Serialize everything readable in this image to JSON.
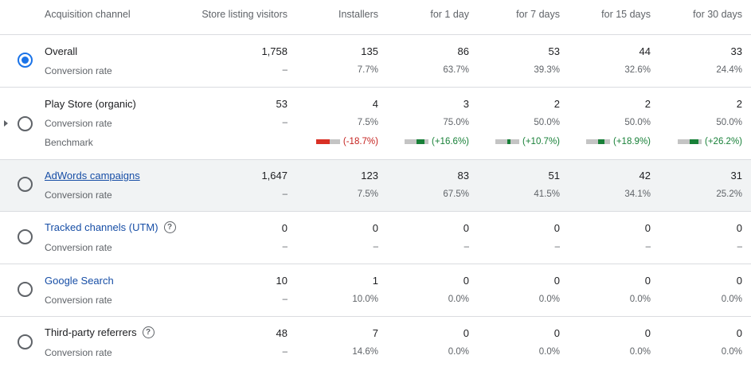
{
  "header": {
    "channel": "Acquisition channel",
    "visitors": "Store listing visitors",
    "installers": "Installers",
    "d1": "for 1 day",
    "d7": "for 7 days",
    "d15": "for 15 days",
    "d30": "for 30 days"
  },
  "rows": [
    {
      "name": "Overall",
      "sub": "Conversion rate",
      "selected": true,
      "values": [
        "1,758",
        "135",
        "86",
        "53",
        "44",
        "33"
      ],
      "rates": [
        "–",
        "7.7%",
        "63.7%",
        "39.3%",
        "32.6%",
        "24.4%"
      ]
    },
    {
      "name": "Play Store (organic)",
      "sub": "Conversion rate",
      "bench_label": "Benchmark",
      "values": [
        "53",
        "4",
        "3",
        "2",
        "2",
        "2"
      ],
      "rates": [
        "–",
        "7.5%",
        "75.0%",
        "50.0%",
        "50.0%",
        "50.0%"
      ],
      "benchmarks": [
        {
          "text": "(-18.7%)",
          "color": "#d93025"
        },
        {
          "text": "(+16.6%)",
          "color": "#188038"
        },
        {
          "text": "(+10.7%)",
          "color": "#188038"
        },
        {
          "text": "(+18.9%)",
          "color": "#188038"
        },
        {
          "text": "(+26.2%)",
          "color": "#188038"
        }
      ]
    },
    {
      "name": "AdWords campaigns",
      "sub": "Conversion rate",
      "values": [
        "1,647",
        "123",
        "83",
        "51",
        "42",
        "31"
      ],
      "rates": [
        "–",
        "7.5%",
        "67.5%",
        "41.5%",
        "34.1%",
        "25.2%"
      ]
    },
    {
      "name": "Tracked channels (UTM)",
      "sub": "Conversion rate",
      "help_icon": "?",
      "values": [
        "0",
        "0",
        "0",
        "0",
        "0",
        "0"
      ],
      "rates": [
        "–",
        "–",
        "–",
        "–",
        "–",
        "–"
      ]
    },
    {
      "name": "Google Search",
      "sub": "Conversion rate",
      "values": [
        "10",
        "1",
        "0",
        "0",
        "0",
        "0"
      ],
      "rates": [
        "–",
        "10.0%",
        "0.0%",
        "0.0%",
        "0.0%",
        "0.0%"
      ]
    },
    {
      "name": "Third-party referrers",
      "sub": "Conversion rate",
      "help_icon": "?",
      "values": [
        "48",
        "7",
        "0",
        "0",
        "0",
        "0"
      ],
      "rates": [
        "–",
        "14.6%",
        "0.0%",
        "0.0%",
        "0.0%",
        "0.0%"
      ]
    }
  ],
  "colors": {
    "accent": "#1a73e8",
    "link": "#174ea6",
    "negative": "#d93025",
    "positive": "#188038",
    "highlight_row": "#f1f3f4"
  },
  "icons": [
    "radio-selected-icon",
    "radio-icon",
    "expand-arrow-icon",
    "help-icon"
  ]
}
